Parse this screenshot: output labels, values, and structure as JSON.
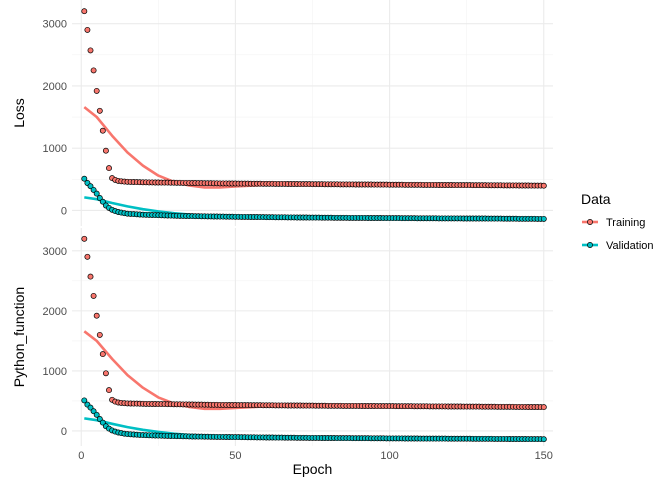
{
  "chart_data": {
    "type": "scatter",
    "xlabel": "Epoch",
    "xlim": [
      -3,
      153
    ],
    "x_ticks": [
      0,
      50,
      100,
      150
    ],
    "legend": {
      "title": "Data",
      "position": "right",
      "entries": [
        "Training",
        "Validation"
      ]
    },
    "colors": {
      "Training": "#F8766D",
      "Validation": "#00BFC4"
    },
    "grid": true,
    "panels": [
      {
        "ylabel": "Loss",
        "ylim": [
          -250,
          3380
        ],
        "y_ticks": [
          0,
          1000,
          2000,
          3000
        ],
        "series": [
          {
            "name": "Training",
            "type": "points+smooth",
            "points": [
              [
                1,
                3200
              ],
              [
                2,
                2900
              ],
              [
                3,
                2570
              ],
              [
                4,
                2250
              ],
              [
                5,
                1920
              ],
              [
                6,
                1600
              ],
              [
                7,
                1280
              ],
              [
                8,
                960
              ],
              [
                9,
                680
              ],
              [
                10,
                520
              ],
              [
                11,
                490
              ],
              [
                12,
                475
              ],
              [
                13,
                468
              ],
              [
                14,
                463
              ],
              [
                15,
                460
              ],
              [
                20,
                452
              ],
              [
                30,
                445
              ],
              [
                40,
                438
              ],
              [
                50,
                432
              ],
              [
                60,
                428
              ],
              [
                70,
                424
              ],
              [
                80,
                420
              ],
              [
                90,
                417
              ],
              [
                100,
                414
              ],
              [
                110,
                411
              ],
              [
                120,
                408
              ],
              [
                130,
                405
              ],
              [
                140,
                402
              ],
              [
                150,
                398
              ]
            ],
            "smooth": [
              [
                1,
                1660
              ],
              [
                5,
                1500
              ],
              [
                10,
                1200
              ],
              [
                15,
                930
              ],
              [
                20,
                720
              ],
              [
                25,
                560
              ],
              [
                30,
                460
              ],
              [
                35,
                400
              ],
              [
                40,
                370
              ],
              [
                45,
                370
              ],
              [
                50,
                385
              ],
              [
                60,
                410
              ],
              [
                70,
                420
              ],
              [
                80,
                418
              ],
              [
                100,
                412
              ],
              [
                120,
                406
              ],
              [
                150,
                398
              ]
            ]
          },
          {
            "name": "Validation",
            "type": "points+smooth",
            "points": [
              [
                1,
                510
              ],
              [
                2,
                440
              ],
              [
                3,
                390
              ],
              [
                4,
                330
              ],
              [
                5,
                270
              ],
              [
                6,
                200
              ],
              [
                7,
                140
              ],
              [
                8,
                80
              ],
              [
                9,
                40
              ],
              [
                10,
                10
              ],
              [
                11,
                -10
              ],
              [
                12,
                -25
              ],
              [
                13,
                -35
              ],
              [
                14,
                -45
              ],
              [
                15,
                -52
              ],
              [
                20,
                -68
              ],
              [
                30,
                -85
              ],
              [
                40,
                -95
              ],
              [
                50,
                -102
              ],
              [
                60,
                -108
              ],
              [
                70,
                -113
              ],
              [
                80,
                -117
              ],
              [
                90,
                -120
              ],
              [
                100,
                -123
              ],
              [
                110,
                -126
              ],
              [
                120,
                -128
              ],
              [
                130,
                -130
              ],
              [
                140,
                -133
              ],
              [
                150,
                -136
              ]
            ],
            "smooth": [
              [
                1,
                210
              ],
              [
                5,
                180
              ],
              [
                10,
                120
              ],
              [
                15,
                65
              ],
              [
                20,
                20
              ],
              [
                25,
                -15
              ],
              [
                30,
                -45
              ],
              [
                35,
                -65
              ],
              [
                40,
                -80
              ],
              [
                50,
                -95
              ],
              [
                60,
                -105
              ],
              [
                80,
                -115
              ],
              [
                100,
                -122
              ],
              [
                120,
                -128
              ],
              [
                150,
                -136
              ]
            ]
          }
        ]
      },
      {
        "ylabel": "Python_function",
        "ylim": [
          -250,
          3380
        ],
        "y_ticks": [
          0,
          1000,
          2000,
          3000
        ],
        "series": [
          {
            "name": "Training",
            "type": "points+smooth",
            "points": [
              [
                1,
                3200
              ],
              [
                2,
                2900
              ],
              [
                3,
                2570
              ],
              [
                4,
                2250
              ],
              [
                5,
                1920
              ],
              [
                6,
                1600
              ],
              [
                7,
                1280
              ],
              [
                8,
                960
              ],
              [
                9,
                680
              ],
              [
                10,
                520
              ],
              [
                11,
                490
              ],
              [
                12,
                475
              ],
              [
                13,
                468
              ],
              [
                14,
                463
              ],
              [
                15,
                460
              ],
              [
                20,
                452
              ],
              [
                30,
                445
              ],
              [
                40,
                438
              ],
              [
                50,
                432
              ],
              [
                60,
                428
              ],
              [
                70,
                424
              ],
              [
                80,
                420
              ],
              [
                90,
                417
              ],
              [
                100,
                414
              ],
              [
                110,
                411
              ],
              [
                120,
                408
              ],
              [
                130,
                405
              ],
              [
                140,
                402
              ],
              [
                150,
                398
              ]
            ],
            "smooth": [
              [
                1,
                1660
              ],
              [
                5,
                1500
              ],
              [
                10,
                1200
              ],
              [
                15,
                930
              ],
              [
                20,
                720
              ],
              [
                25,
                560
              ],
              [
                30,
                460
              ],
              [
                35,
                400
              ],
              [
                40,
                370
              ],
              [
                45,
                370
              ],
              [
                50,
                385
              ],
              [
                60,
                410
              ],
              [
                70,
                420
              ],
              [
                80,
                418
              ],
              [
                100,
                412
              ],
              [
                120,
                406
              ],
              [
                150,
                398
              ]
            ]
          },
          {
            "name": "Validation",
            "type": "points+smooth",
            "points": [
              [
                1,
                510
              ],
              [
                2,
                440
              ],
              [
                3,
                390
              ],
              [
                4,
                330
              ],
              [
                5,
                270
              ],
              [
                6,
                200
              ],
              [
                7,
                140
              ],
              [
                8,
                80
              ],
              [
                9,
                40
              ],
              [
                10,
                10
              ],
              [
                11,
                -10
              ],
              [
                12,
                -25
              ],
              [
                13,
                -35
              ],
              [
                14,
                -45
              ],
              [
                15,
                -52
              ],
              [
                20,
                -68
              ],
              [
                30,
                -85
              ],
              [
                40,
                -95
              ],
              [
                50,
                -102
              ],
              [
                60,
                -108
              ],
              [
                70,
                -113
              ],
              [
                80,
                -117
              ],
              [
                90,
                -120
              ],
              [
                100,
                -123
              ],
              [
                110,
                -126
              ],
              [
                120,
                -128
              ],
              [
                130,
                -130
              ],
              [
                140,
                -133
              ],
              [
                150,
                -136
              ]
            ],
            "smooth": [
              [
                1,
                210
              ],
              [
                5,
                180
              ],
              [
                10,
                120
              ],
              [
                15,
                65
              ],
              [
                20,
                20
              ],
              [
                25,
                -15
              ],
              [
                30,
                -45
              ],
              [
                35,
                -65
              ],
              [
                40,
                -80
              ],
              [
                50,
                -95
              ],
              [
                60,
                -105
              ],
              [
                80,
                -115
              ],
              [
                100,
                -122
              ],
              [
                120,
                -128
              ],
              [
                150,
                -136
              ]
            ]
          }
        ]
      }
    ]
  }
}
